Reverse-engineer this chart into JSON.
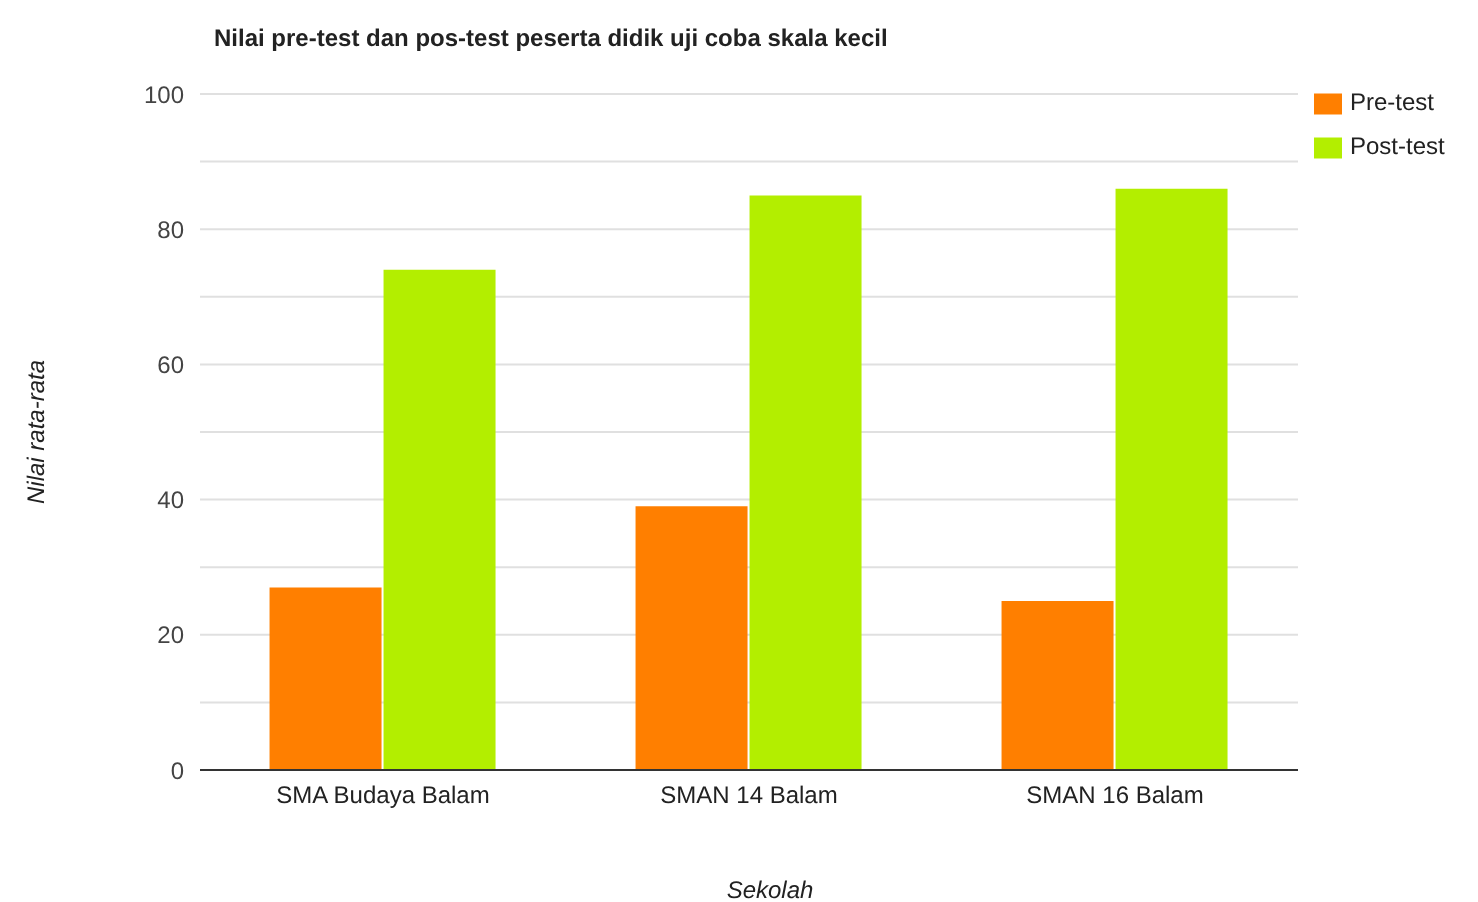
{
  "chart_data": {
    "type": "bar",
    "title": "Nilai pre-test dan pos-test peserta didik uji coba skala kecil",
    "xlabel": "Sekolah",
    "ylabel": "Nilai rata-rata",
    "categories": [
      "SMA Budaya Balam",
      "SMAN 14 Balam",
      "SMAN 16 Balam"
    ],
    "series": [
      {
        "name": "Pre-test",
        "color": "#ff7f00",
        "values": [
          27,
          39,
          25
        ]
      },
      {
        "name": "Post-test",
        "color": "#b3ee00",
        "values": [
          74,
          85,
          86
        ]
      }
    ],
    "ylim": [
      0,
      100
    ],
    "yticks": [
      0,
      {
        "value": 10,
        "label": null
      },
      20,
      {
        "value": 30,
        "label": null
      },
      40,
      {
        "value": 50,
        "label": null
      },
      60,
      {
        "value": 70,
        "label": null
      },
      80,
      {
        "value": 90,
        "label": null
      },
      100
    ],
    "grid": "y",
    "legend": "top right"
  }
}
